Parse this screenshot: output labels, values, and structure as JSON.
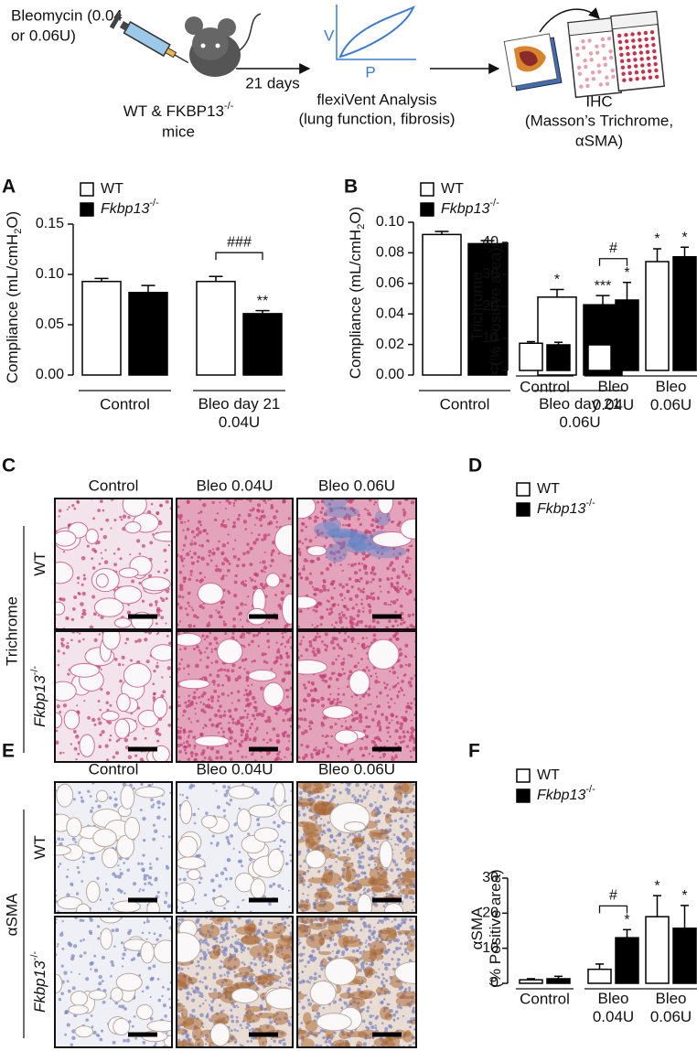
{
  "schematic": {
    "dose": [
      "Bleomycin (0.04",
      "or 0.06U)"
    ],
    "mice": "WT & FKBP13",
    "mice_sup": "-/-",
    "mice_end": "mice",
    "days": "21 days",
    "pv_y": "V",
    "pv_x": "P",
    "flexivent": [
      "flexiVent Analysis",
      "(lung function, fibrosis)"
    ],
    "ihc": [
      "IHC",
      "(Masson’s Trichrome,",
      "αSMA)"
    ]
  },
  "micrographs": [
    {
      "panel": "C",
      "stain": "Trichrome",
      "columns": [
        "Control",
        "Bleo 0.04U",
        "Bleo 0.06U"
      ],
      "rows": [
        "WT",
        "Fkbp13"
      ],
      "row_sup": "-/-"
    },
    {
      "panel": "E",
      "stain": "αSMA",
      "columns": [
        "Control",
        "Bleo 0.04U",
        "Bleo 0.06U"
      ],
      "rows": [
        "WT",
        "Fkbp13"
      ],
      "row_sup": "-/-"
    }
  ],
  "chart_data": [
    {
      "type": "bar",
      "panel": "A",
      "y_label": "Compliance (mL/cmH",
      "y_label_sub": "2",
      "y_label_end": "O)",
      "categories": [
        "Control",
        "Bleo day 21\n0.04U"
      ],
      "series": [
        {
          "name": "WT",
          "color": "#ffffff",
          "values": [
            0.093,
            0.093
          ],
          "errors": [
            0.003,
            0.005
          ]
        },
        {
          "name": "Fkbp13",
          "name_sup": "-/-",
          "color": "#000000",
          "values": [
            0.082,
            0.061
          ],
          "errors": [
            0.007,
            0.003
          ],
          "labels": [
            null,
            "**"
          ]
        }
      ],
      "bracket_labels": [
        null,
        "###"
      ],
      "ylim": [
        0,
        0.15
      ],
      "yticks": [
        {
          "value": 0,
          "label": "0.00"
        },
        {
          "value": 0.05,
          "label": "0.05"
        },
        {
          "value": 0.1,
          "label": "0.10"
        },
        {
          "value": 0.15,
          "label": "0.15"
        }
      ]
    },
    {
      "type": "bar",
      "panel": "B",
      "y_label": "Compliance (mL/cmH",
      "y_label_sub": "2",
      "y_label_end": "O)",
      "categories": [
        "Control",
        "Bleo day 21\n0.06U"
      ],
      "series": [
        {
          "name": "WT",
          "color": "#ffffff",
          "values": [
            0.092,
            0.051
          ],
          "errors": [
            0.002,
            0.005
          ],
          "labels": [
            null,
            "*"
          ]
        },
        {
          "name": "Fkbp13",
          "name_sup": "-/-",
          "color": "#000000",
          "values": [
            0.086,
            0.046
          ],
          "errors": [
            0.002,
            0.006
          ],
          "labels": [
            null,
            "***"
          ]
        }
      ],
      "ylim": [
        0,
        0.1
      ],
      "yticks": [
        {
          "value": 0,
          "label": "0.00"
        },
        {
          "value": 0.02,
          "label": "0.02"
        },
        {
          "value": 0.04,
          "label": "0.04"
        },
        {
          "value": 0.06,
          "label": "0.06"
        },
        {
          "value": 0.08,
          "label": "0.08"
        },
        {
          "value": 0.1,
          "label": "0.10"
        }
      ]
    },
    {
      "type": "bar",
      "panel": "D",
      "y_label": "Trichrome\n(% Positive area)",
      "categories": [
        "Control",
        "Bleo\n0.04U",
        "Bleo\n0.06U"
      ],
      "series": [
        {
          "name": "WT",
          "color": "#ffffff",
          "values": [
            8.5,
            8,
            34
          ],
          "errors": [
            0.5,
            1.5,
            4
          ],
          "labels": [
            null,
            null,
            "*"
          ]
        },
        {
          "name": "Fkbp13",
          "name_sup": "-/-",
          "color": "#000000",
          "values": [
            8,
            22,
            35.5
          ],
          "errors": [
            0.8,
            5.5,
            3
          ],
          "labels": [
            null,
            "*",
            "*"
          ]
        }
      ],
      "bracket_labels": [
        null,
        "#",
        null
      ],
      "ylim": [
        0,
        40
      ],
      "yticks": [
        0,
        10,
        20,
        30,
        40
      ]
    },
    {
      "type": "bar",
      "panel": "F",
      "y_label": "αSMA\n(% Positive area)",
      "categories": [
        "Control",
        "Bleo\n0.04U",
        "Bleo\n0.06U"
      ],
      "series": [
        {
          "name": "WT",
          "color": "#ffffff",
          "values": [
            1,
            4,
            19
          ],
          "errors": [
            0.3,
            1.5,
            6
          ],
          "labels": [
            null,
            null,
            "*"
          ]
        },
        {
          "name": "Fkbp13",
          "name_sup": "-/-",
          "color": "#000000",
          "values": [
            1.3,
            13,
            15.7
          ],
          "errors": [
            0.7,
            2.3,
            6.5
          ],
          "labels": [
            null,
            "*",
            "*"
          ]
        }
      ],
      "bracket_labels": [
        null,
        "#",
        null
      ],
      "ylim": [
        0,
        30
      ],
      "yticks": [
        0,
        10,
        20,
        30
      ]
    }
  ]
}
